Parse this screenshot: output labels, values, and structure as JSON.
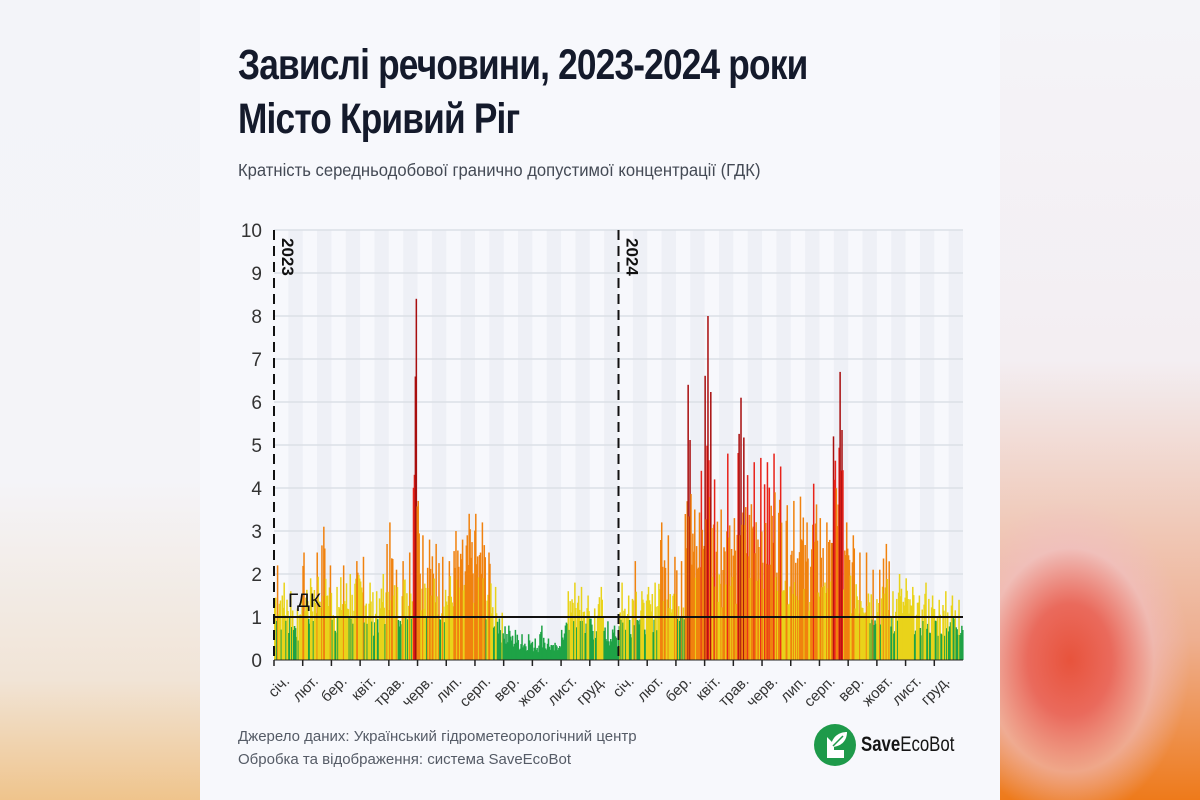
{
  "header": {
    "title_line1": "Завислі речовини, 2023-2024 роки",
    "title_line2": "Місто Кривий Ріг",
    "subtitle": "Кратність середньодобової гранично допустимої концентрації (ГДК)"
  },
  "footer": {
    "source_line": "Джерело даних: Український гідрометеорологічний центр",
    "processing_line": "Обробка та відображення: система SaveEcoBot",
    "logo_text_bold": "Save",
    "logo_text_light": "EcoBot"
  },
  "colors": {
    "green": "#1fa346",
    "yellow": "#e9d31a",
    "orange": "#f0820f",
    "red": "#e8221a",
    "darkred": "#a80e0e",
    "gdk_line": "#111111"
  },
  "chart_data": {
    "type": "bar",
    "title": "Завислі речовини, 2023-2024 роки",
    "ylabel": "Кратність ГДК",
    "ylim": [
      0,
      10
    ],
    "yticks": [
      "0",
      "1",
      "2",
      "3",
      "4",
      "5",
      "6",
      "7",
      "8",
      "9",
      "10"
    ],
    "reference_line": {
      "label": "ГДК",
      "value": 1
    },
    "year_markers": [
      "2023",
      "2024"
    ],
    "month_labels": [
      "січ.",
      "лют.",
      "бер.",
      "квіт.",
      "трав.",
      "черв.",
      "лип.",
      "серп.",
      "вер.",
      "жовт.",
      "лист.",
      "груд."
    ],
    "color_thresholds": [
      {
        "max": 1,
        "color": "green"
      },
      {
        "max": 2,
        "color": "yellow"
      },
      {
        "max": 4,
        "color": "orange"
      },
      {
        "max": 5,
        "color": "red"
      },
      {
        "max": 10,
        "color": "darkred"
      }
    ],
    "series": [
      {
        "name": "2023",
        "weekly_peaks": [
          2.2,
          1.8,
          1.6,
          1.2,
          2.5,
          1.9,
          2.5,
          3.1,
          2.2,
          1.7,
          2.2,
          2.0,
          2.3,
          2.4,
          1.8,
          1.6,
          2.0,
          3.2,
          2.1,
          2.3,
          2.5,
          8.4,
          2.9,
          2.8,
          2.7,
          2.4,
          2.3,
          3.0,
          2.8,
          3.4,
          3.4,
          3.2,
          2.5,
          1.7,
          1.1,
          0.8,
          0.7,
          0.6,
          0.6,
          0.5,
          0.8,
          0.5,
          0.4,
          0.7,
          1.6,
          1.8,
          1.7,
          1.5,
          1.2,
          1.7,
          0.9,
          0.8
        ]
      },
      {
        "name": "2024",
        "weekly_peaks": [
          1.8,
          1.5,
          2.3,
          1.6,
          1.7,
          1.8,
          3.2,
          2.9,
          2.4,
          2.3,
          6.4,
          3.5,
          4.4,
          8.0,
          4.2,
          3.5,
          4.8,
          3.3,
          6.1,
          4.3,
          4.6,
          4.7,
          4.6,
          4.8,
          4.5,
          3.6,
          3.7,
          3.8,
          3.2,
          4.1,
          3.3,
          3.2,
          5.2,
          6.7,
          3.2,
          2.9,
          2.5,
          2.5,
          2.1,
          2.1,
          2.7,
          1.6,
          2.0,
          1.9,
          1.7,
          1.5,
          1.8,
          1.5,
          1.4,
          1.6,
          1.5,
          1.4
        ]
      }
    ]
  }
}
